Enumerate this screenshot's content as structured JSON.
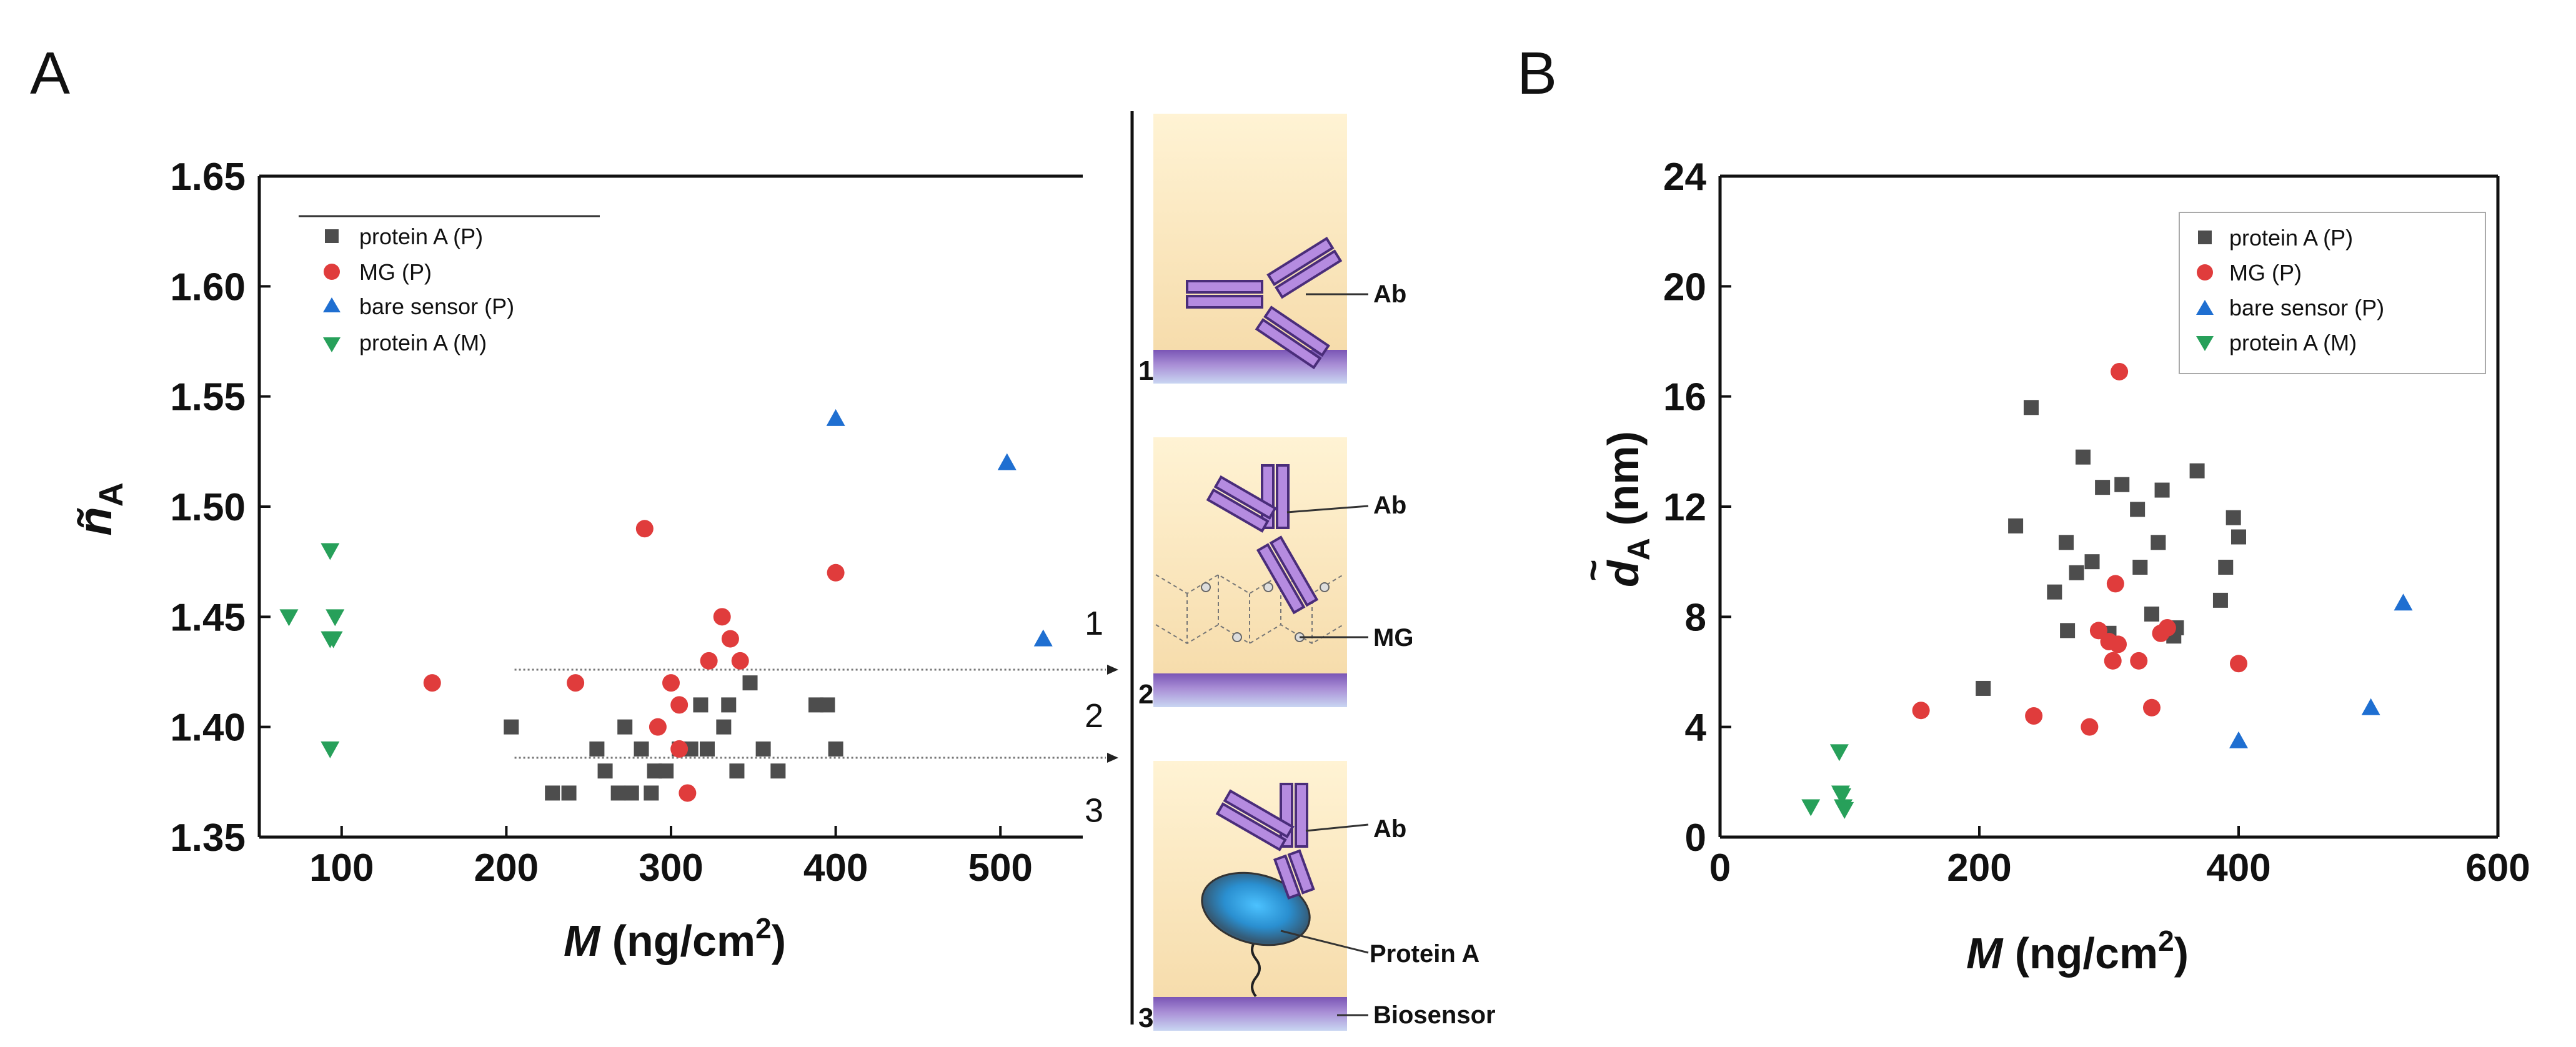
{
  "panel_labels": [
    "A",
    "B"
  ],
  "chart_data": [
    {
      "type": "scatter",
      "panel": "A",
      "xlabel_var": "M",
      "xlabel_unit": " (ng/cm",
      "xlabel_sup": "2",
      "xlabel_close": ")",
      "ylabel_var": "ñ",
      "ylabel_sub": "A",
      "xlim": [
        50,
        550
      ],
      "ylim": [
        1.35,
        1.65
      ],
      "xticks": [
        100,
        200,
        300,
        400,
        500
      ],
      "xtick_labels": [
        "100",
        "200",
        "300",
        "400",
        "500"
      ],
      "yticks": [
        1.35,
        1.4,
        1.45,
        1.5,
        1.55,
        1.6,
        1.65
      ],
      "ytick_labels": [
        "1.35",
        "1.40",
        "1.45",
        "1.50",
        "1.55",
        "1.60",
        "1.65"
      ],
      "legend_position": "top-left",
      "region_lines": [
        1.426,
        1.386
      ],
      "region_labels": [
        {
          "text": "1",
          "y": 1.447
        },
        {
          "text": "2",
          "y": 1.405
        },
        {
          "text": "3",
          "y": 1.362
        }
      ],
      "series": [
        {
          "name": "protein A (P)",
          "marker": "square",
          "color": "#4d4d4d",
          "x": [
            203,
            228,
            238,
            255,
            260,
            268,
            272,
            276,
            282,
            288,
            290,
            297,
            305,
            312,
            318,
            322,
            332,
            335,
            340,
            348,
            356,
            365,
            388,
            395,
            400
          ],
          "y": [
            1.4,
            1.37,
            1.37,
            1.39,
            1.38,
            1.37,
            1.4,
            1.37,
            1.39,
            1.37,
            1.38,
            1.38,
            1.39,
            1.39,
            1.41,
            1.39,
            1.4,
            1.41,
            1.38,
            1.42,
            1.39,
            1.38,
            1.41,
            1.41,
            1.39
          ]
        },
        {
          "name": "MG (P)",
          "marker": "circle",
          "color": "#e03c3c",
          "x": [
            155,
            242,
            284,
            292,
            300,
            305,
            305,
            310,
            323,
            331,
            336,
            342,
            400
          ],
          "y": [
            1.42,
            1.42,
            1.49,
            1.4,
            1.42,
            1.41,
            1.39,
            1.37,
            1.43,
            1.45,
            1.44,
            1.43,
            1.47
          ]
        },
        {
          "name": "bare sensor (P)",
          "marker": "triangle-up",
          "color": "#1f6fd1",
          "x": [
            400,
            504,
            526
          ],
          "y": [
            1.54,
            1.52,
            1.44
          ]
        },
        {
          "name": "protein A (M)",
          "marker": "triangle-down",
          "color": "#27a05a",
          "x": [
            68,
            93,
            96,
            95,
            93,
            93
          ],
          "y": [
            1.45,
            1.48,
            1.45,
            1.44,
            1.44,
            1.39
          ]
        }
      ]
    },
    {
      "type": "scatter",
      "panel": "B",
      "xlabel_var": "M",
      "xlabel_unit": " (ng/cm",
      "xlabel_sup": "2",
      "xlabel_close": ")",
      "ylabel_var": "d",
      "ylabel_accent": "~",
      "ylabel_sub": "A",
      "ylabel_unit": " (nm)",
      "xlim": [
        0,
        600
      ],
      "ylim": [
        0,
        24
      ],
      "xticks": [
        0,
        200,
        400,
        600
      ],
      "xtick_labels": [
        "0",
        "200",
        "400",
        "600"
      ],
      "yticks": [
        0,
        4,
        8,
        12,
        16,
        20,
        24
      ],
      "ytick_labels": [
        "0",
        "4",
        "8",
        "12",
        "16",
        "20",
        "24"
      ],
      "legend_position": "top-right",
      "series": [
        {
          "name": "protein A (P)",
          "marker": "square",
          "color": "#4d4d4d",
          "x": [
            203,
            228,
            240,
            258,
            267,
            268,
            275,
            280,
            287,
            295,
            300,
            310,
            322,
            324,
            333,
            338,
            341,
            350,
            352,
            368,
            386,
            390,
            396,
            400
          ],
          "y": [
            5.4,
            11.3,
            15.6,
            8.9,
            10.7,
            7.5,
            9.6,
            13.8,
            10.0,
            12.7,
            7.4,
            12.8,
            11.9,
            9.8,
            8.1,
            10.7,
            12.6,
            7.3,
            7.6,
            13.3,
            8.6,
            9.8,
            11.6,
            10.9
          ]
        },
        {
          "name": "MG (P)",
          "marker": "circle",
          "color": "#e03c3c",
          "x": [
            155,
            242,
            285,
            292,
            300,
            303,
            305,
            307,
            308,
            323,
            333,
            340,
            345,
            400
          ],
          "y": [
            4.6,
            4.4,
            4.0,
            7.5,
            7.1,
            6.4,
            9.2,
            7.0,
            16.9,
            6.4,
            4.7,
            7.4,
            7.6,
            6.3
          ]
        },
        {
          "name": "bare sensor (P)",
          "marker": "triangle-up",
          "color": "#1f6fd1",
          "x": [
            400,
            502,
            527
          ],
          "y": [
            3.5,
            4.7,
            8.5
          ]
        },
        {
          "name": "protein A (M)",
          "marker": "triangle-down",
          "color": "#27a05a",
          "x": [
            70,
            92,
            93,
            94,
            95,
            96
          ],
          "y": [
            1.1,
            3.1,
            1.6,
            1.5,
            1.1,
            1.0
          ]
        }
      ]
    }
  ],
  "schematic": {
    "panels": [
      {
        "number": "1",
        "labels": [
          "Ab"
        ]
      },
      {
        "number": "2",
        "labels": [
          "Ab",
          "MG"
        ]
      },
      {
        "number": "3",
        "labels": [
          "Ab",
          "Protein A",
          "Biosensor"
        ]
      }
    ]
  }
}
